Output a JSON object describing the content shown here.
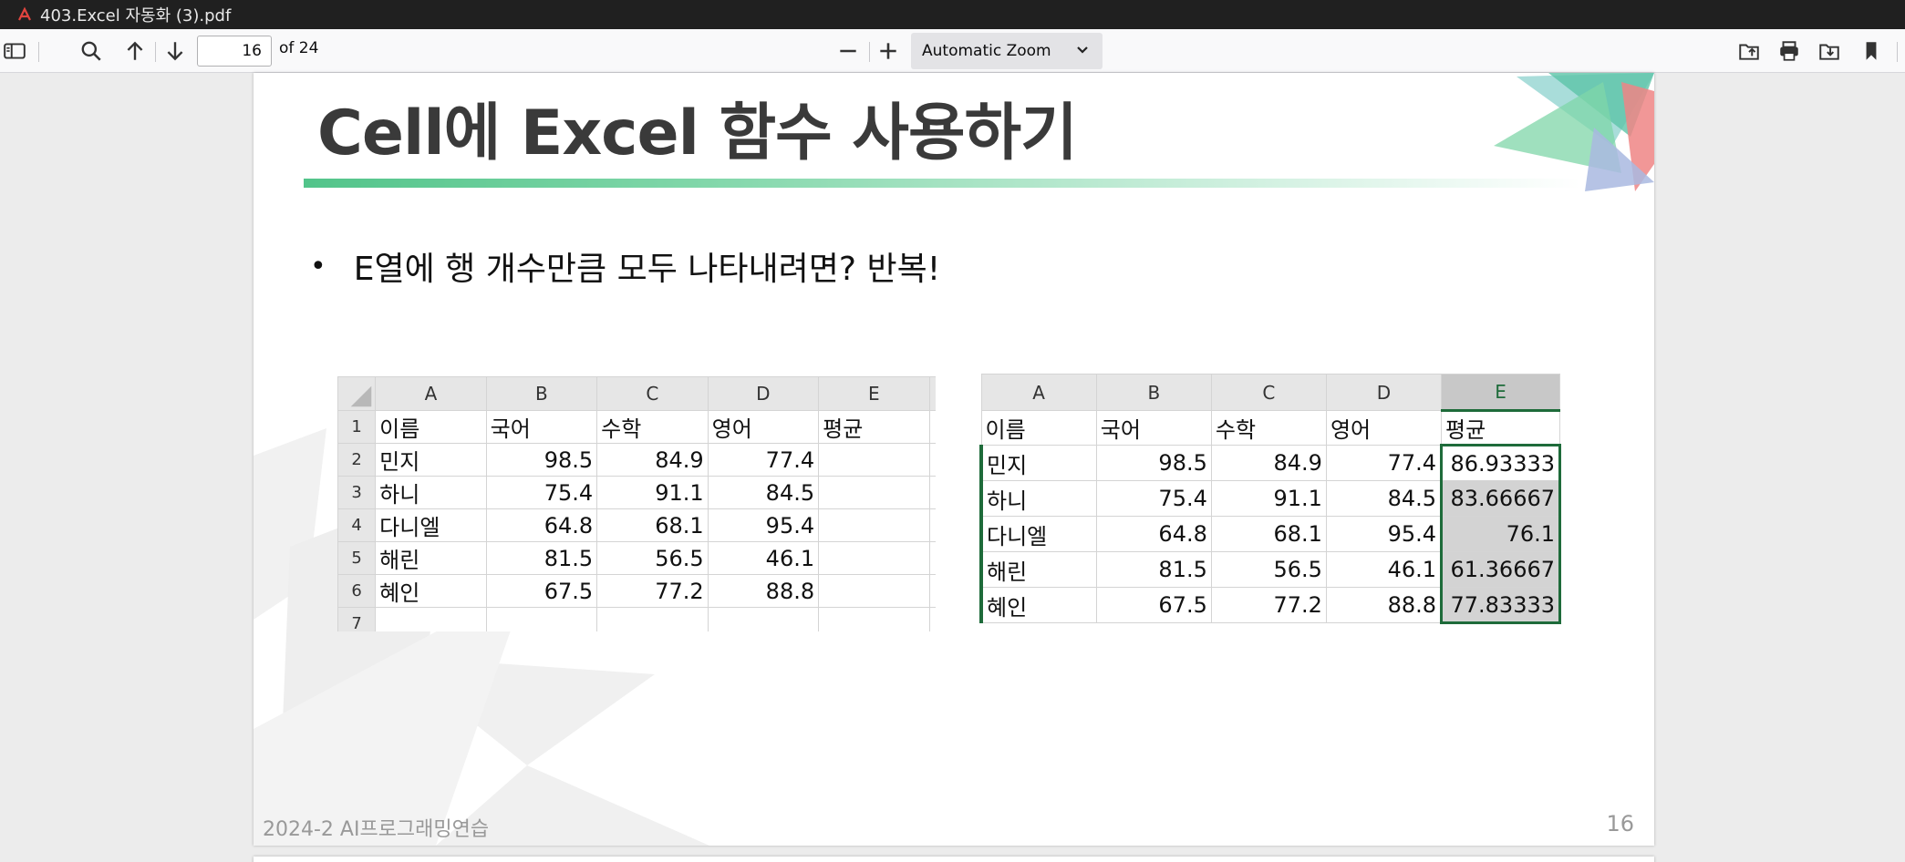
{
  "titlebar": {
    "filename": "403.Excel 자동화 (3).pdf",
    "icon": "pdf-icon"
  },
  "toolbar": {
    "page_current": "16",
    "page_total": "of 24",
    "zoom": "Automatic Zoom",
    "icons": [
      "sidebar-toggle-icon",
      "search-icon",
      "arrow-up-icon",
      "arrow-down-icon",
      "zoom-out-icon",
      "zoom-in-icon",
      "open-file-icon",
      "print-icon",
      "download-icon",
      "bookmark-icon"
    ]
  },
  "slide": {
    "title": "Cell에 Excel 함수 사용하기",
    "bullet": "E열에 행 개수만큼 모두 나타내려면? 반복!",
    "bullet_marker": "•",
    "footer": "2024-2 AI프로그래밍연습",
    "page_number": "16",
    "accent_color": "#52c48a"
  },
  "sheet_left": {
    "columns": [
      "A",
      "B",
      "C",
      "D",
      "E"
    ],
    "rows": [
      {
        "n": "1",
        "cells": [
          "이름",
          "국어",
          "수학",
          "영어",
          "평균"
        ]
      },
      {
        "n": "2",
        "cells": [
          "민지",
          "98.5",
          "84.9",
          "77.4",
          ""
        ]
      },
      {
        "n": "3",
        "cells": [
          "하니",
          "75.4",
          "91.1",
          "84.5",
          ""
        ]
      },
      {
        "n": "4",
        "cells": [
          "다니엘",
          "64.8",
          "68.1",
          "95.4",
          ""
        ]
      },
      {
        "n": "5",
        "cells": [
          "해린",
          "81.5",
          "56.5",
          "46.1",
          ""
        ]
      },
      {
        "n": "6",
        "cells": [
          "혜인",
          "67.5",
          "77.2",
          "88.8",
          ""
        ]
      },
      {
        "n": "7",
        "cells": [
          "",
          "",
          "",
          "",
          ""
        ]
      }
    ]
  },
  "sheet_right": {
    "columns": [
      "A",
      "B",
      "C",
      "D",
      "E"
    ],
    "rows": [
      {
        "cells": [
          "이름",
          "국어",
          "수학",
          "영어",
          "평균"
        ]
      },
      {
        "cells": [
          "민지",
          "98.5",
          "84.9",
          "77.4",
          "86.93333"
        ]
      },
      {
        "cells": [
          "하니",
          "75.4",
          "91.1",
          "84.5",
          "83.66667"
        ]
      },
      {
        "cells": [
          "다니엘",
          "64.8",
          "68.1",
          "95.4",
          "76.1"
        ]
      },
      {
        "cells": [
          "해린",
          "81.5",
          "56.5",
          "46.1",
          "61.36667"
        ]
      },
      {
        "cells": [
          "혜인",
          "67.5",
          "77.2",
          "88.8",
          "77.83333"
        ]
      }
    ]
  }
}
